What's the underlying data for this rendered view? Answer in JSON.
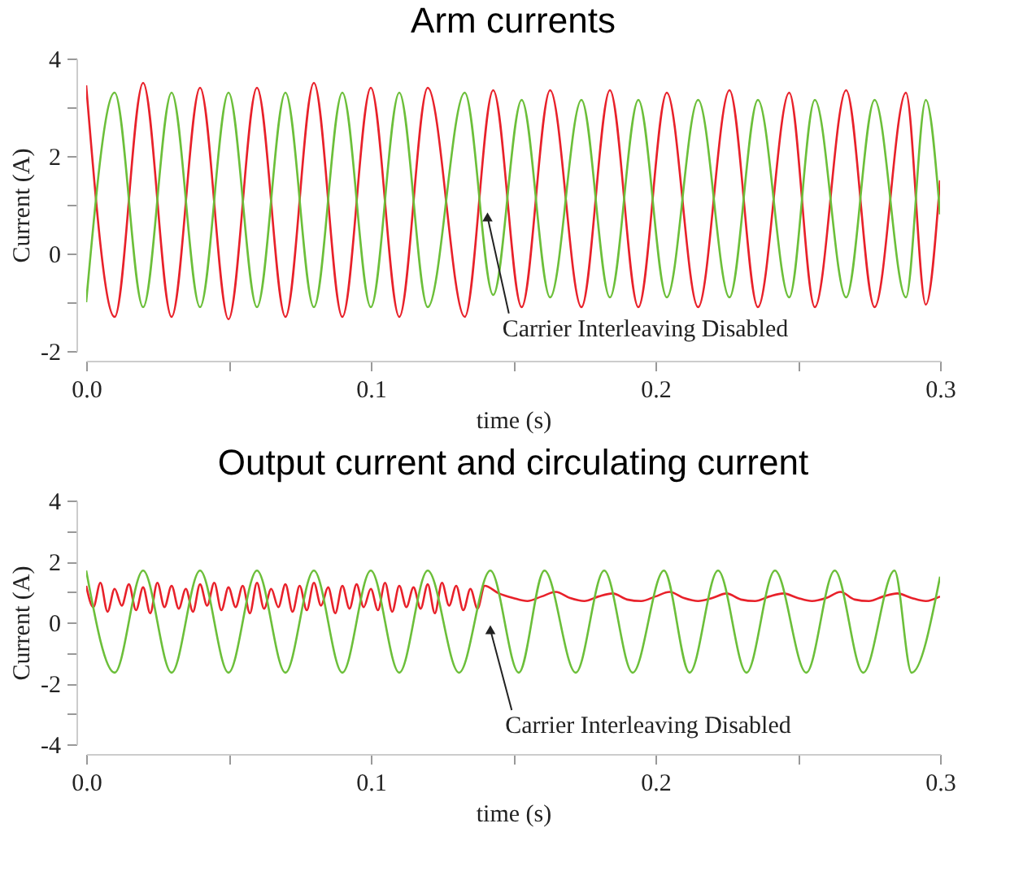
{
  "chart_data": [
    {
      "type": "line",
      "title": "Arm currents",
      "xlabel": "time (s)",
      "ylabel": "Current (A)",
      "xlim": [
        0,
        0.3
      ],
      "ylim": [
        -2,
        4
      ],
      "xticks": [
        {
          "value": 0,
          "label": "0.0"
        },
        {
          "value": 0.05,
          "label": null
        },
        {
          "value": 0.1,
          "label": "0.1"
        },
        {
          "value": 0.15,
          "label": null
        },
        {
          "value": 0.2,
          "label": "0.2"
        },
        {
          "value": 0.25,
          "label": null
        },
        {
          "value": 0.3,
          "label": "0.3"
        }
      ],
      "yticks": [
        -2,
        {
          "value": -1,
          "label": null
        },
        0,
        {
          "value": 1,
          "label": null
        },
        2,
        {
          "value": 3,
          "label": null
        },
        4
      ],
      "series": [
        {
          "color": "#e8212a",
          "x": [
            0,
            0.01,
            0.02,
            0.03,
            0.04,
            0.05,
            0.06,
            0.07,
            0.08,
            0.09,
            0.1,
            0.11,
            0.12,
            0.133,
            0.143,
            0.153,
            0.163,
            0.174,
            0.184,
            0.194,
            0.204,
            0.215,
            0.226,
            0.236,
            0.247,
            0.256,
            0.267,
            0.277,
            0.288,
            0.295,
            0.3
          ],
          "values": [
            3.45,
            -1.3,
            3.5,
            -1.3,
            3.4,
            -1.35,
            3.4,
            -1.3,
            3.5,
            -1.3,
            3.4,
            -1.3,
            3.4,
            -1.3,
            3.35,
            -1.1,
            3.35,
            -1.1,
            3.35,
            -1.1,
            3.3,
            -1.1,
            3.35,
            -1.1,
            3.3,
            -1.1,
            3.35,
            -1.1,
            3.3,
            -1.05,
            1.5
          ]
        },
        {
          "color": "#6cbf3a",
          "x": [
            0,
            0.01,
            0.02,
            0.03,
            0.04,
            0.05,
            0.06,
            0.07,
            0.08,
            0.09,
            0.1,
            0.11,
            0.12,
            0.133,
            0.143,
            0.153,
            0.163,
            0.174,
            0.184,
            0.194,
            0.204,
            0.215,
            0.226,
            0.236,
            0.247,
            0.256,
            0.267,
            0.277,
            0.288,
            0.295,
            0.3
          ],
          "values": [
            -1.0,
            3.3,
            -1.1,
            3.3,
            -1.1,
            3.3,
            -1.1,
            3.3,
            -1.1,
            3.3,
            -1.1,
            3.3,
            -1.1,
            3.3,
            -0.85,
            3.15,
            -0.9,
            3.15,
            -0.9,
            3.15,
            -0.9,
            3.15,
            -0.9,
            3.15,
            -0.9,
            3.15,
            -0.9,
            3.15,
            -0.9,
            3.15,
            0.8
          ]
        }
      ],
      "annotations": [
        {
          "text": "Carrier Interleaving Disabled",
          "x": 0.141,
          "y": 0.75
        }
      ]
    },
    {
      "type": "line",
      "title": "Output current and circulating current",
      "xlabel": "time (s)",
      "ylabel": "Current (A)",
      "xlim": [
        0,
        0.3
      ],
      "ylim": [
        -4,
        4
      ],
      "xticks": [
        {
          "value": 0,
          "label": "0.0"
        },
        {
          "value": 0.05,
          "label": null
        },
        {
          "value": 0.1,
          "label": "0.1"
        },
        {
          "value": 0.15,
          "label": null
        },
        {
          "value": 0.2,
          "label": "0.2"
        },
        {
          "value": 0.25,
          "label": null
        },
        {
          "value": 0.3,
          "label": "0.3"
        }
      ],
      "yticks": [
        -4,
        {
          "value": -3,
          "label": null
        },
        -2,
        {
          "value": -1,
          "label": null
        },
        0,
        {
          "value": 1,
          "label": null
        },
        2,
        {
          "value": 3,
          "label": null
        },
        4
      ],
      "series": [
        {
          "color": "#e8212a",
          "x": [
            0,
            0.0025,
            0.005,
            0.0075,
            0.01,
            0.0125,
            0.015,
            0.0175,
            0.02,
            0.0225,
            0.025,
            0.0275,
            0.03,
            0.0325,
            0.035,
            0.0375,
            0.04,
            0.0425,
            0.045,
            0.0475,
            0.05,
            0.0525,
            0.055,
            0.0575,
            0.06,
            0.0625,
            0.065,
            0.0675,
            0.07,
            0.0725,
            0.075,
            0.0775,
            0.08,
            0.0825,
            0.085,
            0.0875,
            0.09,
            0.0925,
            0.095,
            0.0975,
            0.1,
            0.1025,
            0.105,
            0.1075,
            0.11,
            0.1125,
            0.115,
            0.1175,
            0.12,
            0.1225,
            0.125,
            0.1275,
            0.13,
            0.1325,
            0.135,
            0.1375,
            0.14,
            0.145,
            0.15,
            0.155,
            0.16,
            0.165,
            0.17,
            0.175,
            0.18,
            0.185,
            0.19,
            0.195,
            0.2,
            0.205,
            0.21,
            0.215,
            0.22,
            0.225,
            0.23,
            0.235,
            0.24,
            0.245,
            0.25,
            0.255,
            0.26,
            0.265,
            0.27,
            0.275,
            0.28,
            0.285,
            0.29,
            0.295,
            0.3
          ],
          "values": [
            1.2,
            0.5,
            1.3,
            0.35,
            1.1,
            0.55,
            1.25,
            0.4,
            1.15,
            0.3,
            1.3,
            0.5,
            1.2,
            0.45,
            1.1,
            0.35,
            1.25,
            0.55,
            1.3,
            0.4,
            1.15,
            0.5,
            1.2,
            0.3,
            1.3,
            0.45,
            1.1,
            0.5,
            1.25,
            0.35,
            1.2,
            0.4,
            1.3,
            0.55,
            1.15,
            0.3,
            1.2,
            0.45,
            1.25,
            0.5,
            1.1,
            0.4,
            1.3,
            0.35,
            1.2,
            0.5,
            1.15,
            0.45,
            1.25,
            0.3,
            1.3,
            0.55,
            1.2,
            0.4,
            1.1,
            0.45,
            1.2,
            0.95,
            0.8,
            0.7,
            0.85,
            1.0,
            0.8,
            0.7,
            0.85,
            0.95,
            0.75,
            0.7,
            0.85,
            1.0,
            0.8,
            0.7,
            0.8,
            0.95,
            0.75,
            0.7,
            0.85,
            0.95,
            0.8,
            0.7,
            0.8,
            1.0,
            0.75,
            0.7,
            0.85,
            0.95,
            0.8,
            0.7,
            0.85
          ]
        },
        {
          "color": "#6cbf3a",
          "x": [
            0,
            0.01,
            0.02,
            0.03,
            0.04,
            0.05,
            0.06,
            0.07,
            0.08,
            0.09,
            0.1,
            0.11,
            0.12,
            0.131,
            0.142,
            0.152,
            0.161,
            0.172,
            0.182,
            0.192,
            0.203,
            0.212,
            0.222,
            0.232,
            0.242,
            0.253,
            0.263,
            0.273,
            0.284,
            0.29,
            0.3
          ],
          "values": [
            1.7,
            -1.65,
            1.7,
            -1.65,
            1.7,
            -1.65,
            1.7,
            -1.65,
            1.7,
            -1.65,
            1.7,
            -1.65,
            1.7,
            -1.65,
            1.7,
            -1.65,
            1.7,
            -1.65,
            1.7,
            -1.65,
            1.7,
            -1.65,
            1.7,
            -1.65,
            1.7,
            -1.65,
            1.7,
            -1.65,
            1.7,
            -1.65,
            1.5
          ]
        }
      ],
      "annotations": [
        {
          "text": "Carrier Interleaving Disabled",
          "x": 0.142,
          "y": -0.24
        }
      ]
    }
  ]
}
